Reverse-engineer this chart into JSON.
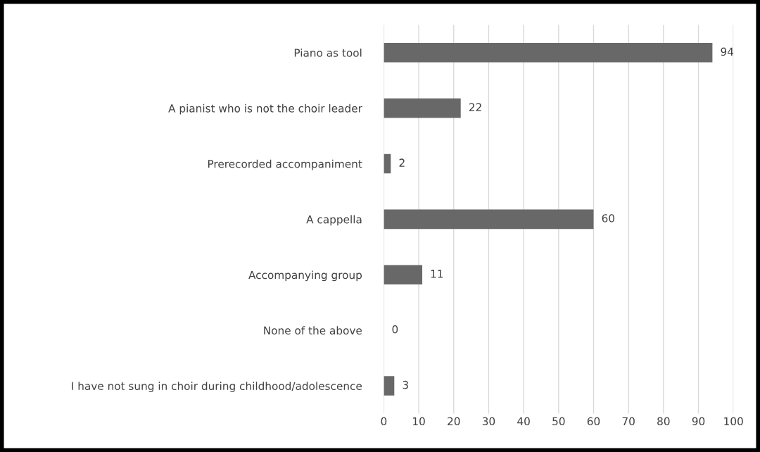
{
  "chart_data": {
    "type": "bar",
    "orientation": "horizontal",
    "categories": [
      "Piano as tool",
      "A pianist who is not the choir leader",
      "Prerecorded accompaniment",
      "A cappella",
      "Accompanying group",
      "None of the above",
      "I have not sung in choir during childhood/adolescence"
    ],
    "values": [
      94,
      22,
      2,
      60,
      11,
      0,
      3
    ],
    "color": "#686868",
    "xlim": [
      0,
      100
    ],
    "xticks": [
      0,
      10,
      20,
      30,
      40,
      50,
      60,
      70,
      80,
      90,
      100
    ],
    "grid": "x",
    "data_labels": true
  }
}
